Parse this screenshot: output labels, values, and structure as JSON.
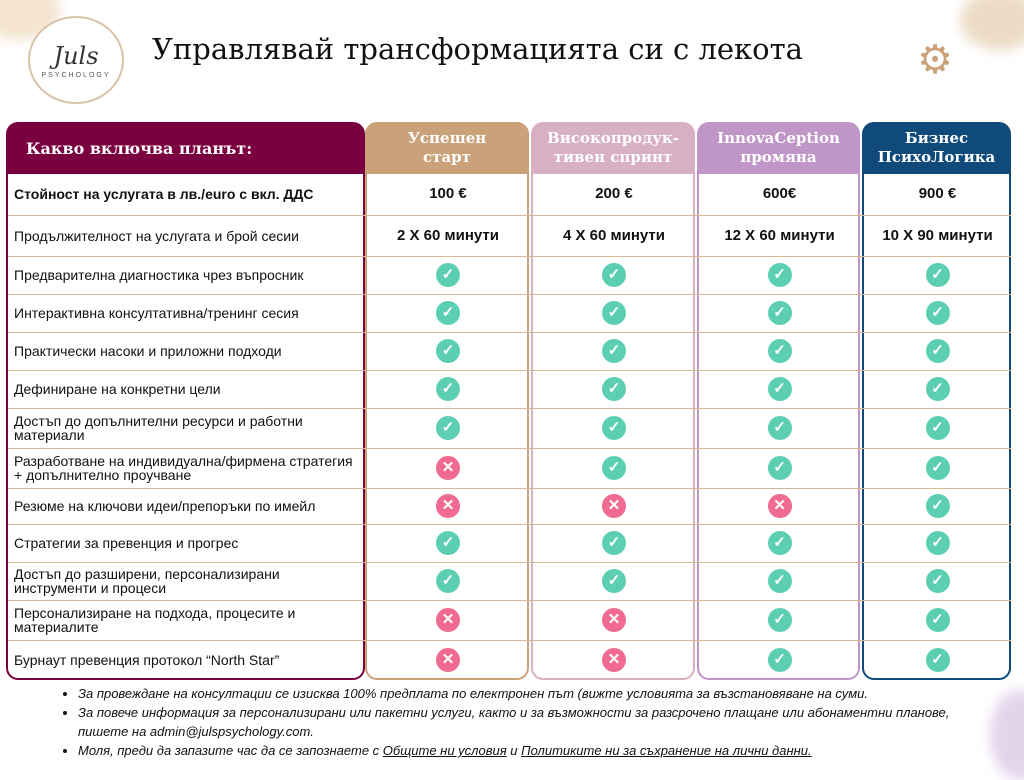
{
  "header": {
    "logo_text": "Juls",
    "logo_sub": "PSYCHOLOGY",
    "title": "Управлявай трансформацията си с лекота"
  },
  "colors": {
    "main": "#7a0040",
    "plan1": "#c9a27a",
    "plan2": "#d8b0c4",
    "plan3": "#c096c8",
    "plan4": "#0f4a7a",
    "check": "#5ccfb2",
    "cross": "#f06a92"
  },
  "table": {
    "label_header": "Какво включва планът:",
    "plans": [
      "Успешен\nстарт",
      "Високопродук-\nтивен спринт",
      "InnovaCeption\nпромяна",
      "Бизнес\nПсихоЛогика"
    ],
    "price_label": "Стойност на услугата в лв./euro с вкл. ДДС",
    "prices": [
      "100 €",
      "200 €",
      "600€",
      "900 €"
    ],
    "duration_label": "Продължителност на услугата и брой сесии",
    "durations": [
      "2 X 60 минути",
      "4 X 60 минути",
      "12  X 60 минути",
      "10  X  90 минути"
    ],
    "features": [
      {
        "label": "Предварителна диагностика чрез въпросник",
        "included": [
          true,
          true,
          true,
          true
        ]
      },
      {
        "label": "Интерактивна консултативна/тренинг сесия",
        "included": [
          true,
          true,
          true,
          true
        ]
      },
      {
        "label": "Практически насоки и приложни подходи",
        "included": [
          true,
          true,
          true,
          true
        ]
      },
      {
        "label": "Дефиниране на конкретни цели",
        "included": [
          true,
          true,
          true,
          true
        ]
      },
      {
        "label": "Достъп до допълнителни ресурси и работни материали",
        "included": [
          true,
          true,
          true,
          true
        ]
      },
      {
        "label": "Разработване на индивидуална/фирмена стратегия + допълнително проучване",
        "included": [
          false,
          true,
          true,
          true
        ]
      },
      {
        "label": "Резюме на ключови идеи/препоръки по имейл",
        "included": [
          false,
          false,
          false,
          true
        ]
      },
      {
        "label": "Стратегии за превенция и прогрес",
        "included": [
          true,
          true,
          true,
          true
        ]
      },
      {
        "label": "Достъп до разширени, персонализирани инструменти и процеси",
        "included": [
          true,
          true,
          true,
          true
        ]
      },
      {
        "label": "Персонализиране на подхода, процесите и материалите",
        "included": [
          false,
          false,
          true,
          true
        ]
      },
      {
        "label": "Бурнаут превенция протокол “North Star”",
        "included": [
          false,
          false,
          true,
          true
        ]
      }
    ]
  },
  "notes": {
    "n1": "За провеждане на консултации се изисква 100%  предплата по електронен път (вижте условията за възстановяване на суми.",
    "n2": "За повече информация за персонализирани или пакетни услуги, както и за възможности за разсрочено плащане или абонаментни планове, пишете на admin@julspsychology.com.",
    "n3_pre": "Моля, преди да запазите час да се запознаете с ",
    "n3_link1": "Общите ни условия",
    "n3_mid": " и ",
    "n3_link2": "Политиките ни за съхранение на лични данни."
  }
}
